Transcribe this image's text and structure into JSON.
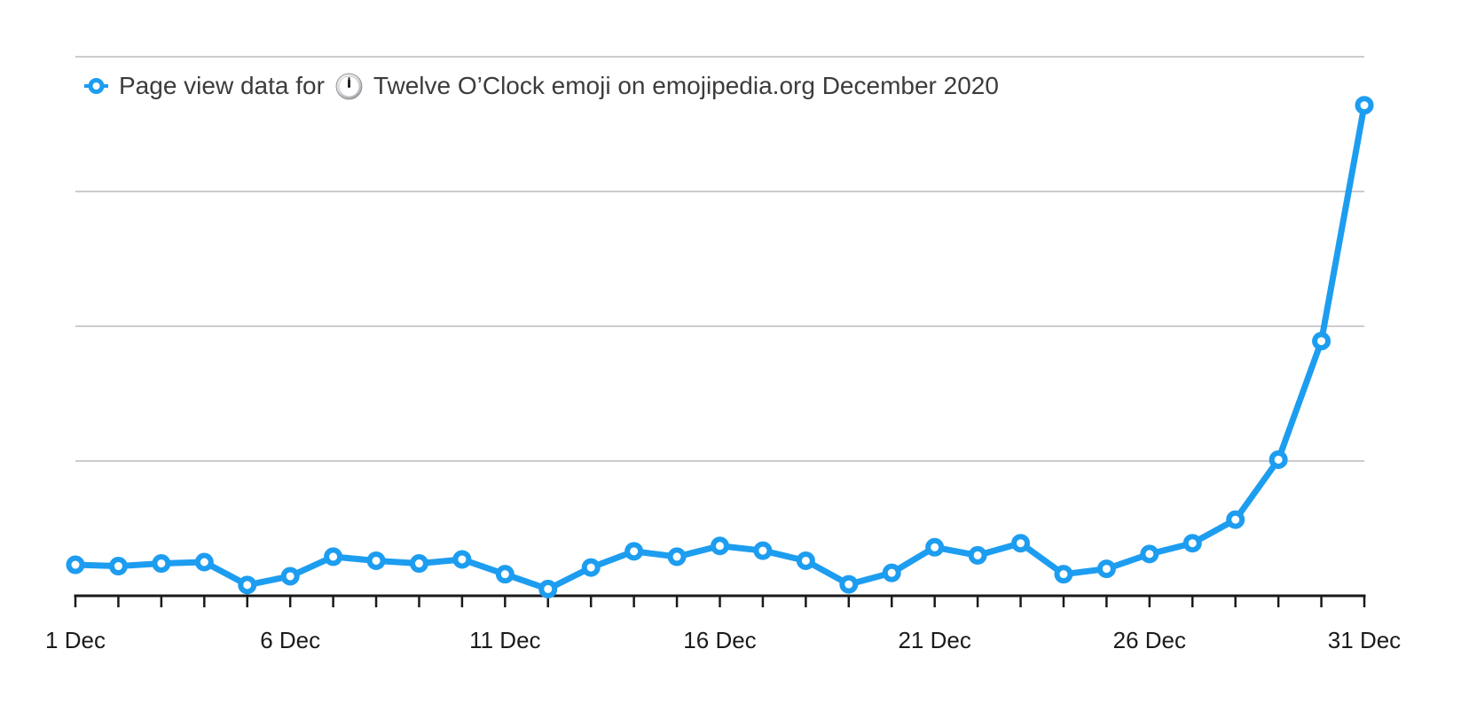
{
  "legend": {
    "label_before": "Page view data for",
    "emoji_char": "🕛",
    "emoji_name": "twelve-oclock-emoji",
    "label_after": "Twelve O’Clock emoji on emojipedia.org December 2020"
  },
  "chart_data": {
    "type": "line",
    "title": "Page view data for 🕛 Twelve O’Clock emoji on emojipedia.org December 2020",
    "xlabel": "",
    "ylabel": "",
    "x": [
      1,
      2,
      3,
      4,
      5,
      6,
      7,
      8,
      9,
      10,
      11,
      12,
      13,
      14,
      15,
      16,
      17,
      18,
      19,
      20,
      21,
      22,
      23,
      24,
      25,
      26,
      27,
      28,
      29,
      30,
      31
    ],
    "x_tick_labels": [
      "1 Dec",
      "6 Dec",
      "11 Dec",
      "16 Dec",
      "21 Dec",
      "26 Dec",
      "31 Dec"
    ],
    "x_tick_label_days": [
      1,
      6,
      11,
      16,
      21,
      26,
      31
    ],
    "series": [
      {
        "name": "Page view data for 🕛 Twelve O’Clock emoji on emojipedia.org December 2020",
        "values": [
          0.23,
          0.22,
          0.24,
          0.25,
          0.08,
          0.145,
          0.29,
          0.26,
          0.24,
          0.27,
          0.16,
          0.05,
          0.21,
          0.33,
          0.29,
          0.37,
          0.335,
          0.26,
          0.085,
          0.17,
          0.36,
          0.3,
          0.39,
          0.16,
          0.2,
          0.31,
          0.39,
          0.565,
          1.01,
          1.89,
          3.64
        ],
        "units": "relative (gridline spacing = 1 unit; no y-axis labels shown in chart)"
      }
    ],
    "ylim": [
      0,
      4
    ],
    "y_gridlines": [
      1,
      2,
      3,
      4
    ],
    "y_axis_labels_visible": false,
    "grid": "horizontal only",
    "legend_position": "top-left inside plot",
    "colors": {
      "line": "#1d9df0",
      "marker_fill": "#ffffff",
      "gridline": "#cccccc",
      "axis": "#1a1a1a",
      "tick_label": "#1b1b1b",
      "legend_text": "#3c3c3c"
    }
  }
}
